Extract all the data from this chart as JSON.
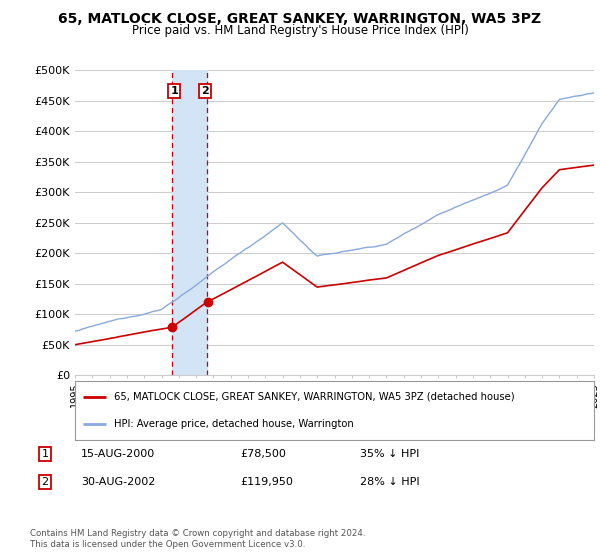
{
  "title": "65, MATLOCK CLOSE, GREAT SANKEY, WARRINGTON, WA5 3PZ",
  "subtitle": "Price paid vs. HM Land Registry's House Price Index (HPI)",
  "ylabel_ticks": [
    "£0",
    "£50K",
    "£100K",
    "£150K",
    "£200K",
    "£250K",
    "£300K",
    "£350K",
    "£400K",
    "£450K",
    "£500K"
  ],
  "ytick_values": [
    0,
    50000,
    100000,
    150000,
    200000,
    250000,
    300000,
    350000,
    400000,
    450000,
    500000
  ],
  "ylim": [
    0,
    500000
  ],
  "year_start": 1995,
  "year_end": 2025,
  "hpi_color": "#88aadd",
  "price_color": "#cc0000",
  "sale1_year": 2000.62,
  "sale1_price": 78500,
  "sale1_date": "15-AUG-2000",
  "sale1_pct": "35% ↓ HPI",
  "sale2_year": 2002.65,
  "sale2_price": 119950,
  "sale2_date": "30-AUG-2002",
  "sale2_pct": "28% ↓ HPI",
  "shade_color": "#d4e4f7",
  "vline_color": "#cc0000",
  "legend_label1": "65, MATLOCK CLOSE, GREAT SANKEY, WARRINGTON, WA5 3PZ (detached house)",
  "legend_label2": "HPI: Average price, detached house, Warrington",
  "footer": "Contains HM Land Registry data © Crown copyright and database right 2024.\nThis data is licensed under the Open Government Licence v3.0.",
  "background_color": "#ffffff",
  "grid_color": "#cccccc"
}
